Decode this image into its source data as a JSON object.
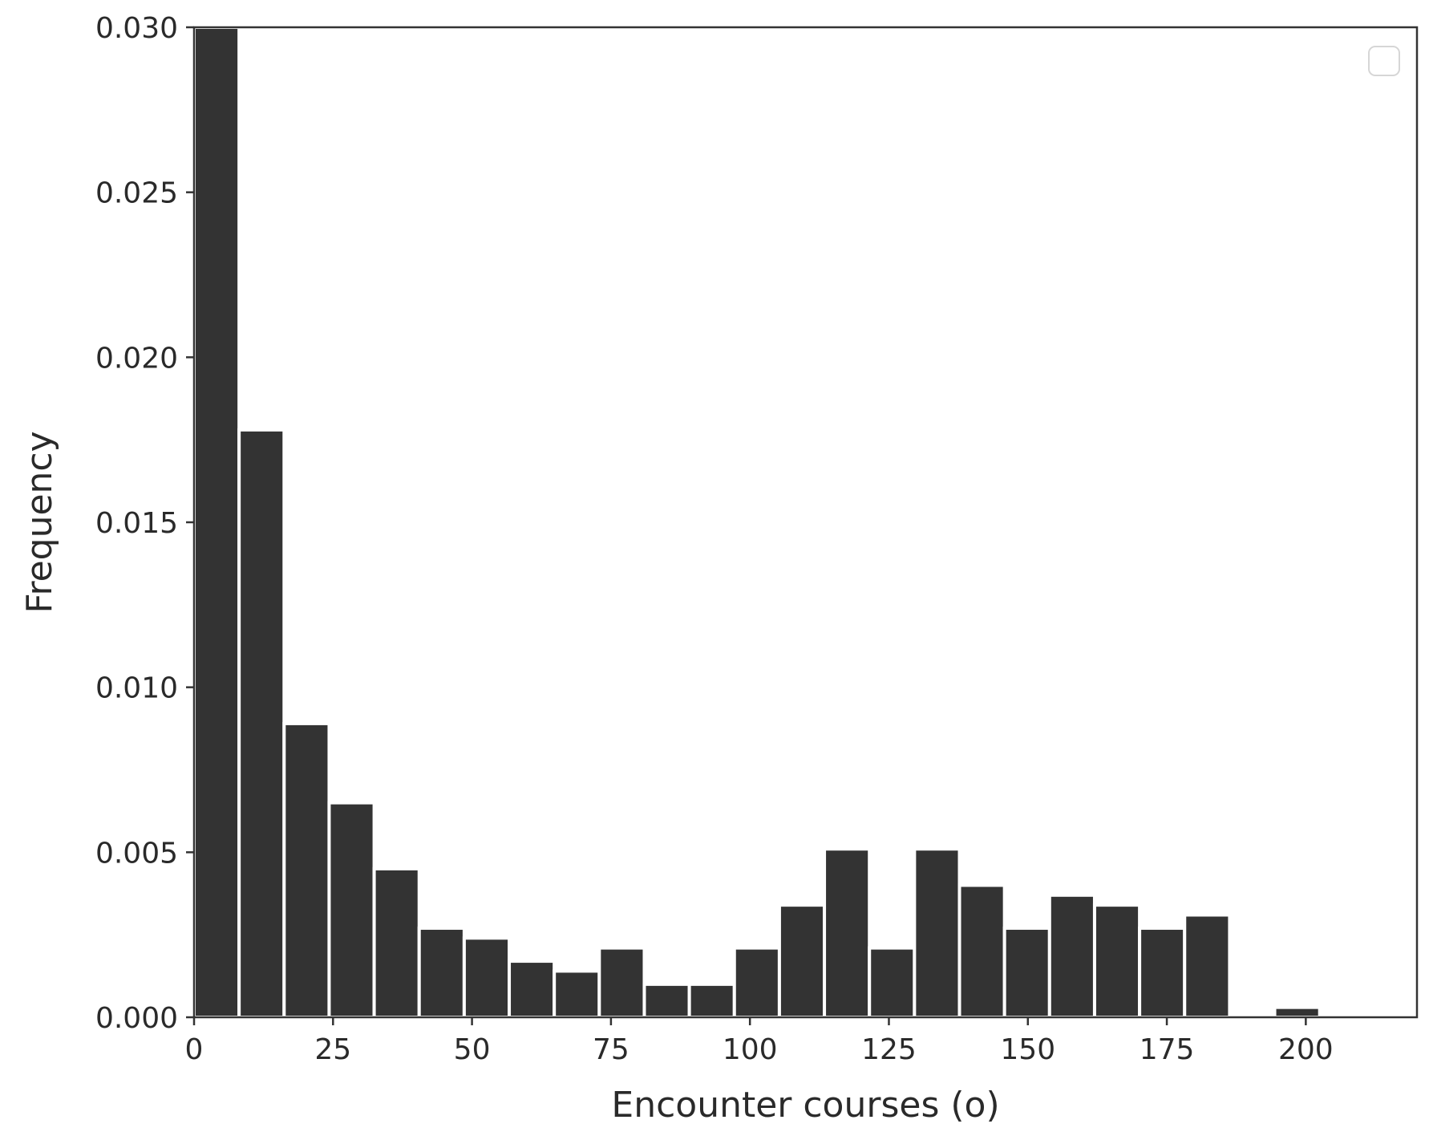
{
  "chart_data": {
    "type": "bar",
    "xlabel": "Encounter courses (o)",
    "ylabel": "Frequency",
    "xlim": [
      0,
      220
    ],
    "ylim": [
      0,
      0.03
    ],
    "x_ticks": [
      0,
      25,
      50,
      75,
      100,
      125,
      150,
      175,
      200
    ],
    "x_tick_labels": [
      "0",
      "25",
      "50",
      "75",
      "100",
      "125",
      "150",
      "175",
      "200"
    ],
    "y_ticks": [
      0.0,
      0.005,
      0.01,
      0.015,
      0.02,
      0.025,
      0.03
    ],
    "y_tick_labels": [
      "0.000",
      "0.005",
      "0.010",
      "0.015",
      "0.020",
      "0.025",
      "0.030"
    ],
    "bin_width": 8.1,
    "bin_edges": [
      0,
      8.1,
      16.2,
      24.3,
      32.4,
      40.5,
      48.6,
      56.7,
      64.8,
      72.9,
      81.0,
      89.1,
      97.2,
      105.3,
      113.4,
      121.5,
      129.6,
      137.7,
      145.8,
      153.9,
      162.0,
      170.1,
      178.2,
      186.3,
      194.4,
      202.5
    ],
    "values": [
      0.03,
      0.0178,
      0.0089,
      0.0065,
      0.0045,
      0.0027,
      0.0024,
      0.0017,
      0.0014,
      0.0021,
      0.001,
      0.001,
      0.0021,
      0.0034,
      0.0051,
      0.0021,
      0.0051,
      0.004,
      0.0027,
      0.0037,
      0.0034,
      0.0027,
      0.0031,
      0.0,
      0.0003
    ],
    "bar_color": "#333333",
    "legend": {
      "placement": "top-right",
      "entries": []
    },
    "grid": false
  }
}
